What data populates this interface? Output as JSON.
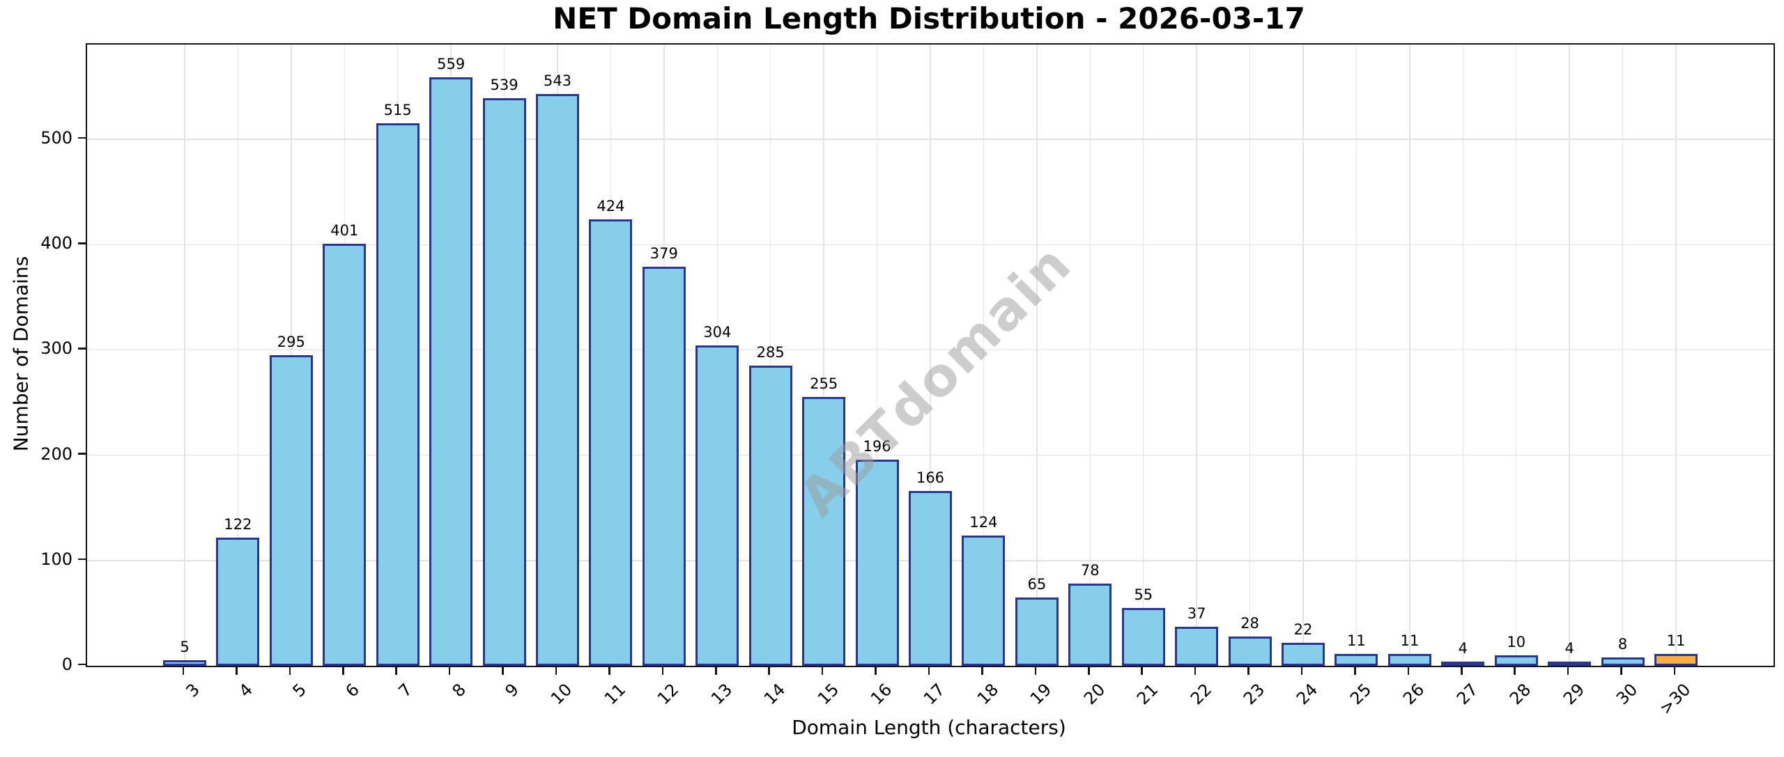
{
  "watermark": "ABTdomain",
  "chart_data": {
    "type": "bar",
    "title": "NET Domain Length Distribution - 2026-03-17",
    "xlabel": "Domain Length (characters)",
    "ylabel": "Number of Domains",
    "categories": [
      "3",
      "4",
      "5",
      "6",
      "7",
      "8",
      "9",
      "10",
      "11",
      "12",
      "13",
      "14",
      "15",
      "16",
      "17",
      "18",
      "19",
      "20",
      "21",
      "22",
      "23",
      "24",
      "25",
      "26",
      "27",
      "28",
      "29",
      "30",
      ">30"
    ],
    "values": [
      5,
      122,
      295,
      401,
      515,
      559,
      539,
      543,
      424,
      379,
      304,
      285,
      255,
      196,
      166,
      124,
      65,
      78,
      55,
      37,
      28,
      22,
      11,
      11,
      4,
      10,
      4,
      8,
      11
    ],
    "value_labels_shown": true,
    "ylim": [
      0,
      590
    ],
    "yticks": [
      0,
      100,
      200,
      300,
      400,
      500
    ],
    "grid": true,
    "legend": "none",
    "bar_fill_color": "#87CEEB",
    "bar_edge_color": "#2a3590",
    "highlight_index": 28,
    "highlight_fill_color": "#FBAE46",
    "xtick_rotation_deg": 45
  }
}
